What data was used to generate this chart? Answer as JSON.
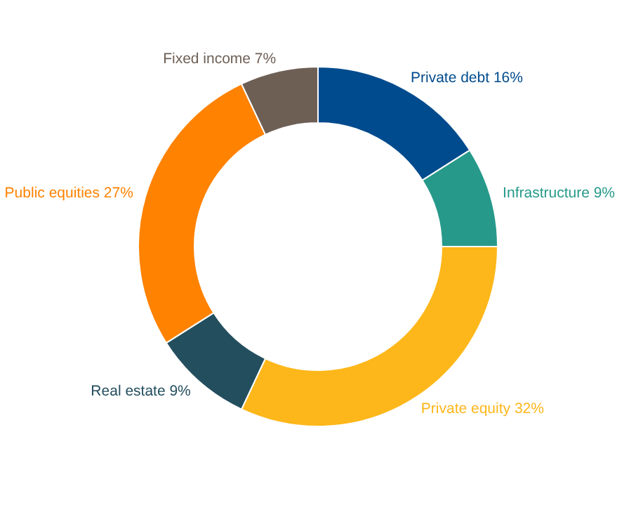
{
  "chart_data": {
    "type": "donut",
    "categories": [
      "Private debt 16%",
      "Infrastructure 9%",
      "Private equity 32%",
      "Real estate 9%",
      "Public equities 27%",
      "Fixed income 7%"
    ],
    "values": [
      16,
      9,
      32,
      9,
      27,
      7
    ],
    "colors": [
      "#004b8d",
      "#26998a",
      "#fdb71a",
      "#234e5e",
      "#ff8200",
      "#6e5f55"
    ]
  }
}
